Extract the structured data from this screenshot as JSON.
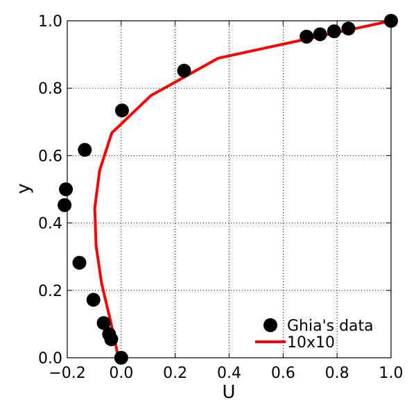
{
  "chart_data": {
    "type": "line",
    "xlabel": "U",
    "ylabel": "y",
    "xlim": [
      -0.2,
      1.0
    ],
    "ylim": [
      0.0,
      1.0
    ],
    "xticks": [
      "−0.2",
      "0.0",
      "0.2",
      "0.4",
      "0.6",
      "0.8",
      "1.0"
    ],
    "yticks": [
      "0.0",
      "0.2",
      "0.4",
      "0.6",
      "0.8",
      "1.0"
    ],
    "grid": true,
    "legend_position": "lower-right",
    "series": [
      {
        "name": "Ghia's data",
        "kind": "scatter",
        "color": "#000000",
        "points": [
          [
            0.0,
            0.0
          ],
          [
            -0.037,
            0.055
          ],
          [
            -0.045,
            0.07
          ],
          [
            -0.065,
            0.103
          ],
          [
            -0.103,
            0.172
          ],
          [
            -0.155,
            0.282
          ],
          [
            -0.21,
            0.453
          ],
          [
            -0.205,
            0.5
          ],
          [
            -0.135,
            0.617
          ],
          [
            0.003,
            0.734
          ],
          [
            0.233,
            0.852
          ],
          [
            0.687,
            0.953
          ],
          [
            0.737,
            0.96
          ],
          [
            0.789,
            0.969
          ],
          [
            0.842,
            0.977
          ],
          [
            1.0,
            1.0
          ]
        ]
      },
      {
        "name": "10x10",
        "kind": "line",
        "color": "#ff0000",
        "points": [
          [
            -0.01,
            0.0
          ],
          [
            -0.04,
            0.11
          ],
          [
            -0.073,
            0.222
          ],
          [
            -0.093,
            0.333
          ],
          [
            -0.098,
            0.444
          ],
          [
            -0.08,
            0.556
          ],
          [
            -0.035,
            0.667
          ],
          [
            0.11,
            0.778
          ],
          [
            0.36,
            0.889
          ],
          [
            1.0,
            1.0
          ]
        ]
      }
    ]
  }
}
